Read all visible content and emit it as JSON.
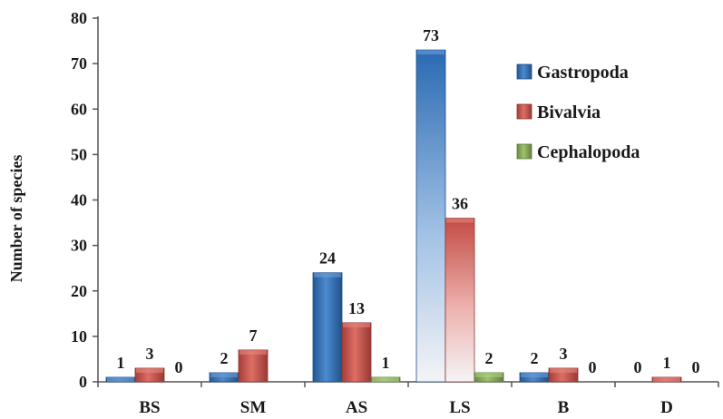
{
  "chart_data": {
    "type": "bar",
    "title": "",
    "xlabel": "",
    "ylabel": "Number of species",
    "ylim": [
      0,
      80
    ],
    "yticks": [
      0,
      10,
      20,
      30,
      40,
      50,
      60,
      70,
      80
    ],
    "grid": false,
    "legend_position": "top-right",
    "categories": [
      "BS",
      "SM",
      "AS",
      "LS",
      "B",
      "D"
    ],
    "series": [
      {
        "name": "Gastropoda",
        "color": "#2e75c6",
        "values": [
          1,
          2,
          24,
          73,
          2,
          0
        ],
        "labels": [
          "1",
          "2",
          "24",
          "73",
          "2",
          "0"
        ]
      },
      {
        "name": "Bivalvia",
        "color": "#d9534a",
        "values": [
          3,
          7,
          13,
          36,
          3,
          1
        ],
        "labels": [
          "3",
          "7",
          "13",
          "36",
          "3",
          "1"
        ]
      },
      {
        "name": "Cephalopoda",
        "color": "#8cb854",
        "values": [
          0,
          null,
          1,
          2,
          0,
          0
        ],
        "labels": [
          "0",
          "",
          "1",
          "2",
          "0",
          "0"
        ]
      }
    ]
  }
}
